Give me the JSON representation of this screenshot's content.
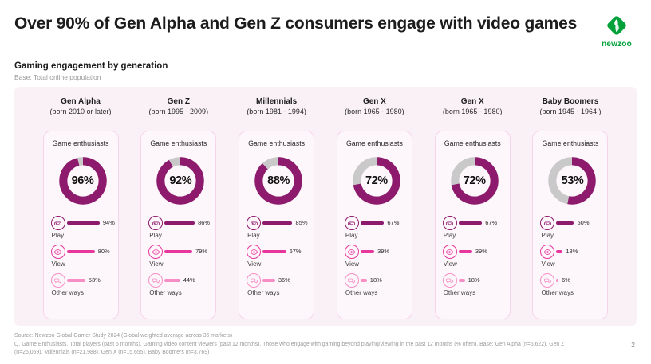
{
  "header": {
    "title": "Over 90% of Gen Alpha and Gen Z consumers engage with video games",
    "logo_text": "newzoo"
  },
  "section": {
    "title": "Gaming engagement by generation",
    "base_note": "Base: Total online population"
  },
  "card_label": "Game enthusiasts",
  "metric_labels": {
    "play": "Play",
    "view": "View",
    "other": "Other ways"
  },
  "colors": {
    "brand_green": "#00A13A",
    "play": "#8E1A6D",
    "view": "#E8379C",
    "other": "#F78FC6",
    "donut_fill": "#8E1A6D",
    "donut_remainder": "#C9C9C9",
    "panel_bg": "#FAF1F7",
    "card_bg": "#FDF6FA",
    "card_border": "#F6D5E9"
  },
  "chart_data": {
    "type": "donut+bar",
    "title": "Gaming engagement by generation",
    "base": "Total online population",
    "categories": [
      "Gen Alpha",
      "Gen Z",
      "Millennials",
      "Gen X",
      "Gen X",
      "Baby Boomers"
    ],
    "birth_ranges": [
      "(born 2010 or later)",
      "(born 1995 - 2009)",
      "(born 1981 - 1994)",
      "(born 1965 - 1980)",
      "(born 1965 - 1980)",
      "(born 1945 - 1964 )"
    ],
    "series": [
      {
        "name": "Game enthusiasts",
        "values": [
          96,
          92,
          88,
          72,
          72,
          53
        ]
      },
      {
        "name": "Play",
        "values": [
          94,
          86,
          85,
          67,
          67,
          50
        ]
      },
      {
        "name": "View",
        "values": [
          80,
          79,
          67,
          39,
          39,
          18
        ]
      },
      {
        "name": "Other ways",
        "values": [
          53,
          44,
          36,
          18,
          18,
          6
        ]
      }
    ],
    "value_unit": "%",
    "donut_range": [
      0,
      100
    ]
  },
  "footer": {
    "source": "Source: Newzoo Global Gamer Study 2024 (Global weighted average across 36 markets)",
    "question": "Q. Game Enthusiasts, Total players (past 6 months), Gaming video content viewers (past 12 months), Those who engage with gaming beyond playing/viewing in the past 12 months (% often). Base: Gen Alpha (n=6,622), Gen Z (n=25,059), Millennials (n=21,988), Gen X (n=15,655), Baby Boomers (n=3,769)",
    "page_number": "2"
  }
}
